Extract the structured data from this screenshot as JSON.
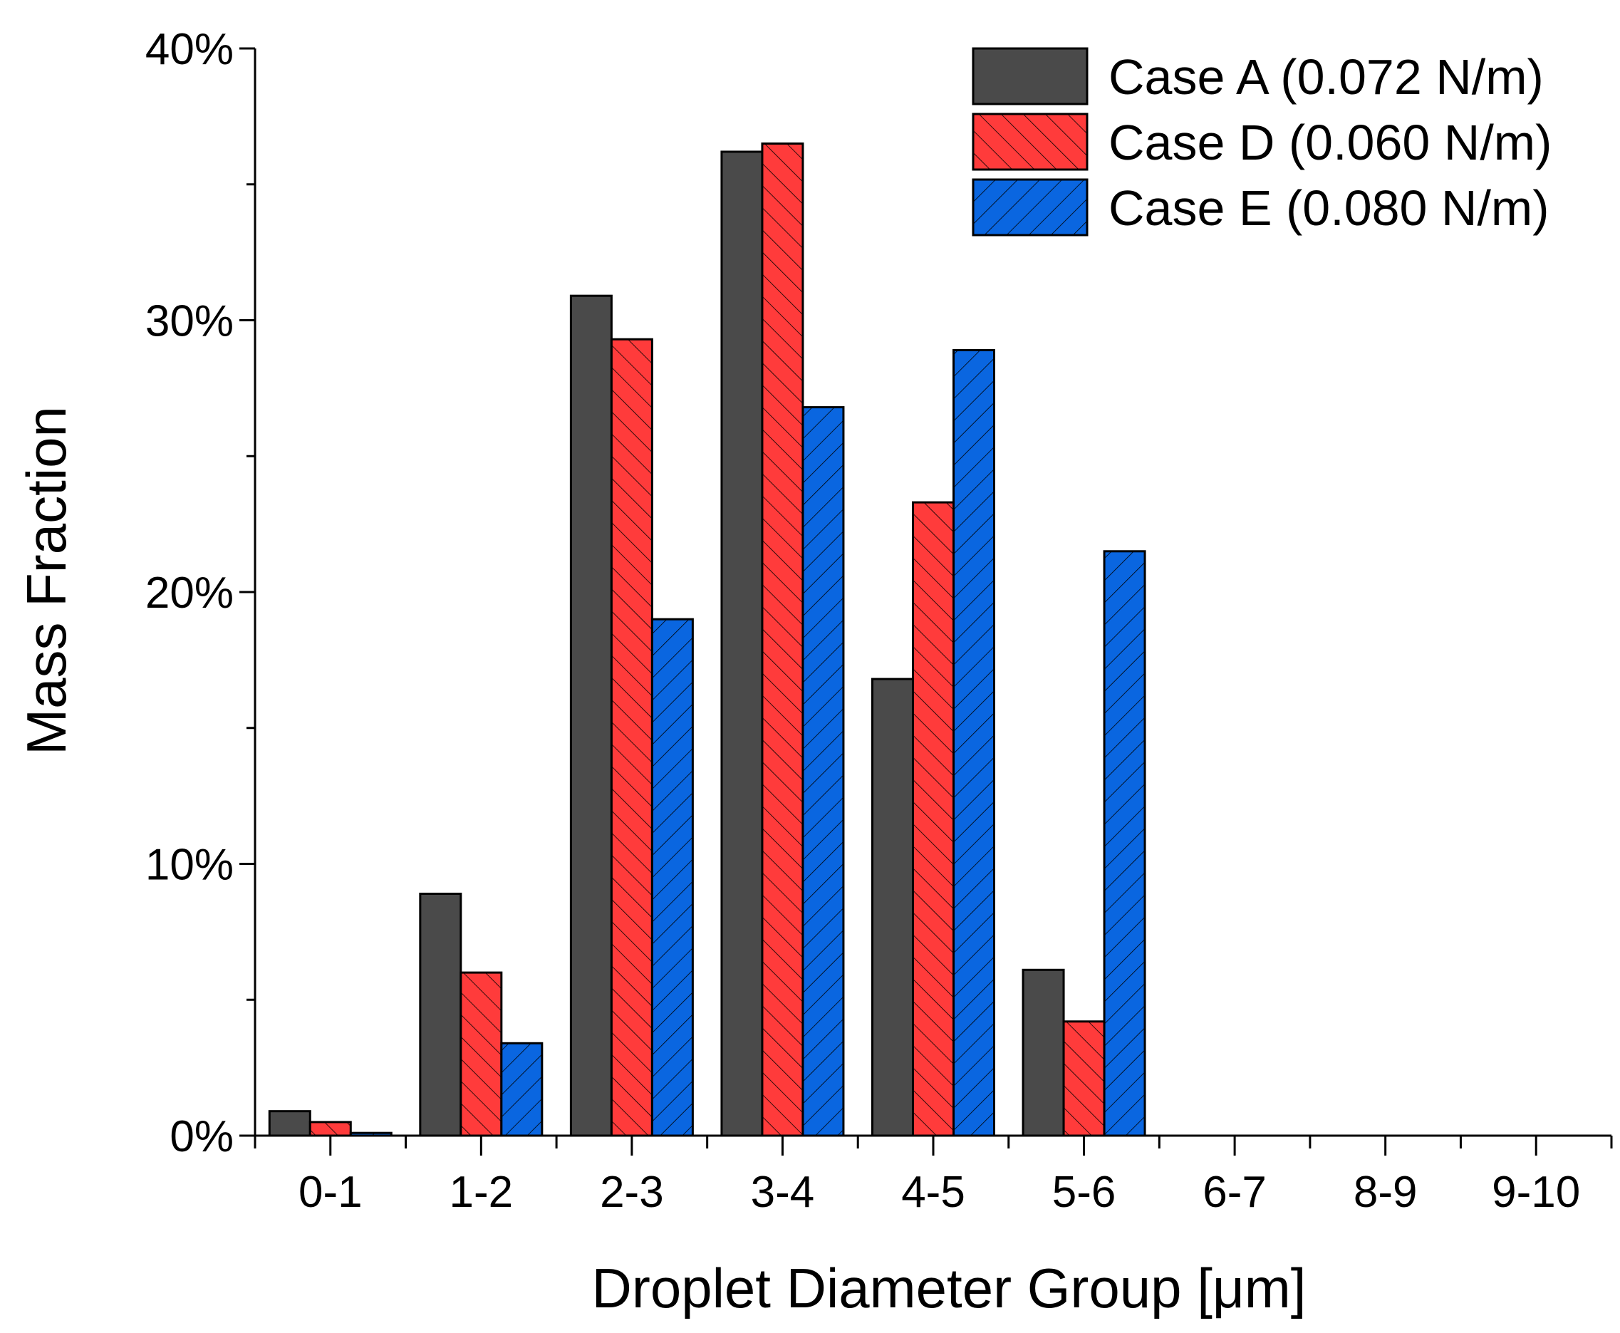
{
  "chart_data": {
    "type": "bar",
    "title": "",
    "xlabel": "Droplet Diameter Group [μm]",
    "ylabel": "Mass Fraction",
    "ylim": [
      0,
      0.4
    ],
    "yticks": [
      0,
      0.1,
      0.2,
      0.3,
      0.4
    ],
    "ytick_labels": [
      "0%",
      "10%",
      "20%",
      "30%",
      "40%"
    ],
    "grid": false,
    "legend_position": "top-right",
    "categories": [
      "0-1",
      "1-2",
      "2-3",
      "3-4",
      "4-5",
      "5-6",
      "6-7",
      "8-9",
      "9-10"
    ],
    "series": [
      {
        "name": "Case A (0.072 N/m)",
        "color": "#4a4a4a",
        "pattern": "none",
        "values": [
          0.009,
          0.089,
          0.309,
          0.362,
          0.168,
          0.061,
          0,
          0,
          0
        ]
      },
      {
        "name": "Case D (0.060 N/m)",
        "color": "#ff3b3b",
        "pattern": "forward-hatch",
        "values": [
          0.005,
          0.06,
          0.293,
          0.365,
          0.233,
          0.042,
          0,
          0,
          0
        ]
      },
      {
        "name": "Case E (0.080 N/m)",
        "color": "#0a66e0",
        "pattern": "back-hatch",
        "values": [
          0.001,
          0.034,
          0.19,
          0.268,
          0.289,
          0.215,
          0,
          0,
          0
        ]
      }
    ]
  }
}
